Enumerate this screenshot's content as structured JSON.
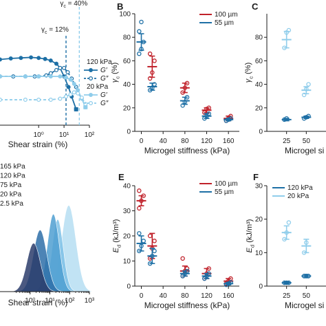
{
  "colors": {
    "dark_blue": "#1d6fa5",
    "light_blue": "#8fcdeb",
    "red": "#c0212a",
    "navy": "#2b3c6b",
    "axis": "#1a1a1a"
  },
  "chart_data": [
    {
      "id": "A",
      "panel_label": "",
      "type": "line",
      "xlabel": "Shear strain (%)",
      "ylabel": "",
      "xscale": "log",
      "xlim": [
        0.03,
        100
      ],
      "xtick_labels": [
        "10⁰",
        "10¹",
        "10²"
      ],
      "xtick_values": [
        1,
        10,
        100
      ],
      "ylim": [
        0,
        100
      ],
      "yaxis_visible": false,
      "annotations": [
        {
          "text": "γc = 12%",
          "x": 12
        },
        {
          "text": "γc = 40%",
          "x": 40
        }
      ],
      "reference_lines_x": [
        12,
        40
      ],
      "legend": {
        "position": "right",
        "groups": [
          {
            "title": "120 kPa",
            "entries": [
              "G′",
              "G″"
            ]
          },
          {
            "title": "20 kPa",
            "entries": [
              "G′",
              "G″"
            ]
          }
        ]
      },
      "series": [
        {
          "name": "120 kPa G′",
          "color": "#1d6fa5",
          "dash": false,
          "filled": true,
          "x": [
            0.03,
            0.08,
            0.2,
            0.5,
            1,
            1.8,
            3,
            5,
            7,
            10,
            15,
            20,
            30
          ],
          "y": [
            62,
            63,
            63.5,
            64,
            63.5,
            62.5,
            61,
            58,
            54,
            46,
            36,
            27,
            15
          ]
        },
        {
          "name": "120 kPa G″",
          "color": "#1d6fa5",
          "dash": true,
          "filled": false,
          "x": [
            0.03,
            0.1,
            0.3,
            0.7,
            1,
            2,
            3,
            5,
            7,
            10,
            14,
            20,
            30
          ],
          "y": [
            46,
            46,
            46,
            46,
            46,
            47,
            49,
            52,
            54,
            54,
            50,
            44,
            36
          ]
        },
        {
          "name": "20 kPa G′",
          "color": "#8fcdeb",
          "dash": false,
          "filled": true,
          "x": [
            0.03,
            0.3,
            1,
            3,
            7,
            12,
            18,
            25,
            35,
            50,
            70
          ],
          "y": [
            46,
            46,
            46,
            46,
            46,
            45,
            43,
            39,
            33,
            25,
            17
          ]
        },
        {
          "name": "20 kPa G″",
          "color": "#8fcdeb",
          "dash": true,
          "filled": false,
          "x": [
            0.03,
            0.3,
            1,
            3,
            7,
            12,
            18,
            25,
            35,
            50,
            70
          ],
          "y": [
            24,
            24,
            24,
            24,
            25,
            27,
            29,
            31,
            30,
            26,
            20
          ]
        }
      ]
    },
    {
      "id": "B",
      "panel_label": "B",
      "type": "scatter",
      "xlabel": "Microgel stiffness (kPa)",
      "ylabel": "γc (%)",
      "xlim": [
        -12,
        180
      ],
      "ylim": [
        0,
        100
      ],
      "xticks": [
        0,
        40,
        80,
        120,
        160
      ],
      "yticks": [
        0,
        20,
        40,
        60,
        80,
        100
      ],
      "legend": {
        "position": "top-right",
        "entries": [
          "100 µm",
          "55 µm"
        ]
      },
      "series": [
        {
          "name": "100 µm",
          "color": "#c0212a",
          "groups": [
            {
              "x": 20,
              "mean": 55,
              "err": 9,
              "points": [
                45,
                50,
                60,
                66
              ]
            },
            {
              "x": 80,
              "mean": 37,
              "err": 4,
              "points": [
                33,
                37,
                41
              ]
            },
            {
              "x": 120,
              "mean": 18,
              "err": 2,
              "points": [
                16,
                19,
                20
              ]
            },
            {
              "x": 160,
              "mean": 11,
              "err": 2,
              "points": [
                9,
                11,
                13
              ]
            }
          ]
        },
        {
          "name": "55 µm",
          "color": "#1d6fa5",
          "groups": [
            {
              "x": 0,
              "mean": 76,
              "err": 7,
              "points": [
                66,
                70,
                76,
                85,
                93
              ]
            },
            {
              "x": 20,
              "mean": 38,
              "err": 3,
              "points": [
                35,
                37,
                40
              ]
            },
            {
              "x": 80,
              "mean": 26,
              "err": 3,
              "points": [
                22,
                25,
                29
              ]
            },
            {
              "x": 120,
              "mean": 13,
              "err": 2,
              "points": [
                11,
                13,
                15
              ]
            },
            {
              "x": 160,
              "mean": 10,
              "err": 1,
              "points": [
                9,
                10,
                11
              ]
            }
          ]
        }
      ]
    },
    {
      "id": "C",
      "panel_label": "C",
      "type": "scatter",
      "xlabel": "Microgel si",
      "ylabel": "γc (%)",
      "xlim": [
        0,
        75
      ],
      "ylim": [
        0,
        100
      ],
      "xticks": [
        25,
        50
      ],
      "yticks": [
        0,
        20,
        40,
        60,
        80
      ],
      "series": [
        {
          "name": "",
          "color": "#8fcdeb",
          "groups": [
            {
              "x": 25,
              "mean": 78,
              "err": 7,
              "points": [
                71,
                84,
                86
              ]
            },
            {
              "x": 50,
              "mean": 35,
              "err": 3,
              "points": [
                31,
                36,
                40
              ]
            }
          ]
        },
        {
          "name": "",
          "color": "#1d6fa5",
          "groups": [
            {
              "x": 25,
              "mean": 10,
              "err": 1,
              "points": [
                10,
                11
              ]
            },
            {
              "x": 50,
              "mean": 12,
              "err": 1,
              "points": [
                11,
                12,
                13
              ]
            }
          ]
        }
      ]
    },
    {
      "id": "D",
      "panel_label": "",
      "type": "area",
      "xlabel": "Shear strain (%)",
      "ylabel": "",
      "xscale": "log",
      "xlim": [
        0.03,
        1000
      ],
      "xtick_values": [
        1,
        10,
        100,
        1000
      ],
      "xtick_labels": [
        "10⁰",
        "10¹",
        "10²",
        "10³"
      ],
      "yaxis_visible": false,
      "legend": {
        "position": "top-left",
        "entries": [
          "165 kPa",
          "120 kPa",
          "75 kPa",
          "20 kPa",
          "2.5 kPa"
        ]
      },
      "series": [
        {
          "name": "165 kPa",
          "color": "#2b3c6b",
          "center": 1.5,
          "width": 0.34,
          "height": 0.55
        },
        {
          "name": "120 kPa",
          "color": "#2e6ea8",
          "center": 3.2,
          "width": 0.34,
          "height": 0.7
        },
        {
          "name": "75 kPa",
          "color": "#4f9fd1",
          "center": 15,
          "width": 0.3,
          "height": 0.88
        },
        {
          "name": "20 kPa",
          "color": "#7ec1e6",
          "center": 25,
          "width": 0.28,
          "height": 0.82
        },
        {
          "name": "2.5 kPa",
          "color": "#b6def2",
          "center": 90,
          "width": 0.36,
          "height": 0.98
        }
      ]
    },
    {
      "id": "E",
      "panel_label": "E",
      "type": "scatter",
      "xlabel": "Microgel stiffness (kPa)",
      "ylabel": "Ed (kJ/m³)",
      "xlim": [
        -12,
        180
      ],
      "ylim": [
        0,
        40
      ],
      "xticks": [
        0,
        40,
        80,
        120,
        160
      ],
      "yticks": [
        0,
        10,
        20,
        30,
        40
      ],
      "legend": {
        "position": "top-right",
        "entries": [
          "100 µm",
          "55 µm"
        ]
      },
      "series": [
        {
          "name": "100 µm",
          "color": "#c0212a",
          "groups": [
            {
              "x": 0,
              "mean": 34,
              "err": 2,
              "points": [
                31,
                34,
                36,
                38
              ]
            },
            {
              "x": 20,
              "mean": 16,
              "err": 5,
              "points": [
                11,
                15,
                18,
                20
              ]
            },
            {
              "x": 80,
              "mean": 6,
              "err": 2,
              "points": [
                4,
                6,
                7,
                11
              ]
            },
            {
              "x": 120,
              "mean": 5,
              "err": 2,
              "points": [
                3,
                5,
                7
              ]
            },
            {
              "x": 160,
              "mean": 2,
              "err": 1,
              "points": [
                1,
                2,
                3
              ]
            }
          ]
        },
        {
          "name": "55 µm",
          "color": "#1d6fa5",
          "groups": [
            {
              "x": 0,
              "mean": 17,
              "err": 3,
              "points": [
                14,
                16,
                18,
                21
              ]
            },
            {
              "x": 20,
              "mean": 12,
              "err": 3,
              "points": [
                9,
                12,
                14
              ]
            },
            {
              "x": 80,
              "mean": 5,
              "err": 1,
              "points": [
                4,
                5,
                6
              ]
            },
            {
              "x": 120,
              "mean": 4,
              "err": 1,
              "points": [
                3,
                4,
                5
              ]
            },
            {
              "x": 160,
              "mean": 1,
              "err": 0.5,
              "points": [
                0.5,
                1,
                1.5
              ]
            }
          ]
        }
      ]
    },
    {
      "id": "F",
      "panel_label": "F",
      "type": "scatter",
      "xlabel": "Microgel si",
      "ylabel": "Ed (kJ/m³)",
      "xlim": [
        0,
        75
      ],
      "ylim": [
        0,
        30
      ],
      "xticks": [
        25,
        50
      ],
      "yticks": [
        0,
        10,
        20,
        30
      ],
      "legend": {
        "position": "top-left",
        "entries": [
          "120 kPa",
          "20 kPa"
        ]
      },
      "series": [
        {
          "name": "120 kPa",
          "color": "#1d6fa5",
          "groups": [
            {
              "x": 25,
              "mean": 1,
              "err": 0.3,
              "points": [
                1,
                1,
                1
              ]
            },
            {
              "x": 50,
              "mean": 3,
              "err": 0.5,
              "points": [
                3,
                3,
                3
              ]
            }
          ]
        },
        {
          "name": "20 kPa",
          "color": "#8fcdeb",
          "groups": [
            {
              "x": 25,
              "mean": 16,
              "err": 2,
              "points": [
                14,
                16,
                19
              ]
            },
            {
              "x": 50,
              "mean": 12,
              "err": 2,
              "points": [
                10,
                13
              ]
            }
          ]
        }
      ]
    }
  ]
}
